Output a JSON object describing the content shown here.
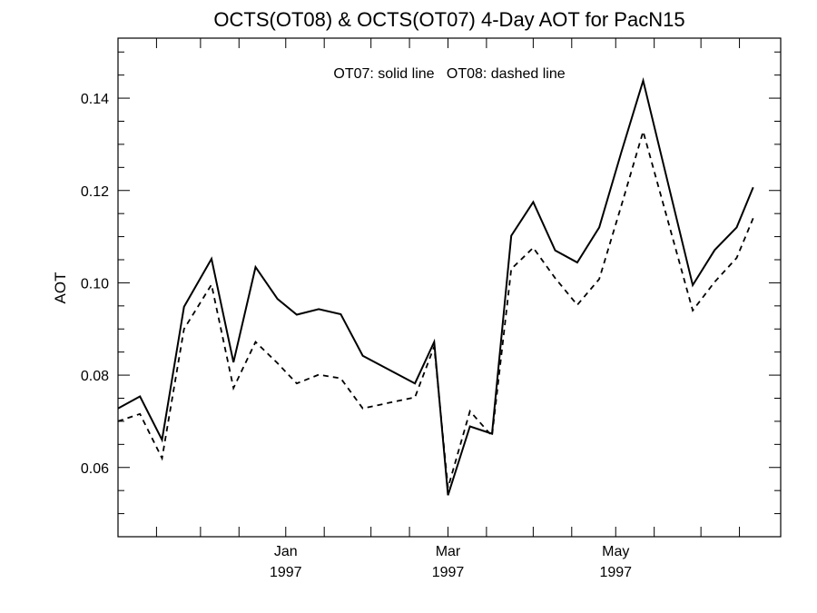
{
  "chart_data": {
    "type": "line",
    "title": "OCTS(OT08) & OCTS(OT07) 4-Day AOT for PacN15",
    "annotation": "OT07: solid line   OT08: dashed line",
    "xlabel": "",
    "ylabel": "AOT",
    "x_range": [
      "1996-11-01",
      "1997-06-30"
    ],
    "ylim": [
      0.045,
      0.153
    ],
    "grid": false,
    "y_ticks": [
      {
        "value": 0.06,
        "label": "0.06"
      },
      {
        "value": 0.08,
        "label": "0.08"
      },
      {
        "value": 0.1,
        "label": "0.10"
      },
      {
        "value": 0.12,
        "label": "0.12"
      },
      {
        "value": 0.14,
        "label": "0.14"
      }
    ],
    "x_ticks": [
      {
        "date": "1997-01-01",
        "label": "Jan",
        "year": "1997"
      },
      {
        "date": "1997-03-01",
        "label": "Mar",
        "year": "1997"
      },
      {
        "date": "1997-05-01",
        "label": "May",
        "year": "1997"
      }
    ],
    "series": [
      {
        "name": "OT07",
        "style": "solid",
        "color": "#000000",
        "points": [
          {
            "x": "1996-11-01",
            "y": 0.0728
          },
          {
            "x": "1996-11-09",
            "y": 0.0754
          },
          {
            "x": "1996-11-17",
            "y": 0.066
          },
          {
            "x": "1996-11-25",
            "y": 0.0948
          },
          {
            "x": "1996-12-05",
            "y": 0.1052
          },
          {
            "x": "1996-12-13",
            "y": 0.0828
          },
          {
            "x": "1996-12-21",
            "y": 0.1034
          },
          {
            "x": "1996-12-29",
            "y": 0.0965
          },
          {
            "x": "1997-01-05",
            "y": 0.0931
          },
          {
            "x": "1997-01-13",
            "y": 0.0943
          },
          {
            "x": "1997-01-21",
            "y": 0.0932
          },
          {
            "x": "1997-01-29",
            "y": 0.0842
          },
          {
            "x": "1997-02-17",
            "y": 0.0782
          },
          {
            "x": "1997-02-24",
            "y": 0.0872
          },
          {
            "x": "1997-03-01",
            "y": 0.054
          },
          {
            "x": "1997-03-09",
            "y": 0.0689
          },
          {
            "x": "1997-03-17",
            "y": 0.0673
          },
          {
            "x": "1997-03-24",
            "y": 0.1102
          },
          {
            "x": "1997-04-01",
            "y": 0.1175
          },
          {
            "x": "1997-04-09",
            "y": 0.107
          },
          {
            "x": "1997-04-17",
            "y": 0.1044
          },
          {
            "x": "1997-04-25",
            "y": 0.112
          },
          {
            "x": "1997-05-03",
            "y": 0.1282
          },
          {
            "x": "1997-05-11",
            "y": 0.1438
          },
          {
            "x": "1997-05-29",
            "y": 0.0995
          },
          {
            "x": "1997-06-06",
            "y": 0.1071
          },
          {
            "x": "1997-06-14",
            "y": 0.112
          },
          {
            "x": "1997-06-20",
            "y": 0.1207
          }
        ]
      },
      {
        "name": "OT08",
        "style": "dashed",
        "color": "#000000",
        "points": [
          {
            "x": "1996-11-01",
            "y": 0.07
          },
          {
            "x": "1996-11-09",
            "y": 0.0716
          },
          {
            "x": "1996-11-17",
            "y": 0.062
          },
          {
            "x": "1996-11-25",
            "y": 0.09
          },
          {
            "x": "1996-12-05",
            "y": 0.0996
          },
          {
            "x": "1996-12-13",
            "y": 0.0772
          },
          {
            "x": "1996-12-21",
            "y": 0.0872
          },
          {
            "x": "1996-12-29",
            "y": 0.0826
          },
          {
            "x": "1997-01-05",
            "y": 0.0782
          },
          {
            "x": "1997-01-13",
            "y": 0.0801
          },
          {
            "x": "1997-01-21",
            "y": 0.0793
          },
          {
            "x": "1997-01-29",
            "y": 0.0728
          },
          {
            "x": "1997-02-17",
            "y": 0.0752
          },
          {
            "x": "1997-02-24",
            "y": 0.0862
          },
          {
            "x": "1997-03-01",
            "y": 0.0556
          },
          {
            "x": "1997-03-09",
            "y": 0.0722
          },
          {
            "x": "1997-03-17",
            "y": 0.0668
          },
          {
            "x": "1997-03-24",
            "y": 0.103
          },
          {
            "x": "1997-04-01",
            "y": 0.1076
          },
          {
            "x": "1997-04-09",
            "y": 0.101
          },
          {
            "x": "1997-04-17",
            "y": 0.0952
          },
          {
            "x": "1997-04-25",
            "y": 0.1008
          },
          {
            "x": "1997-05-03",
            "y": 0.1166
          },
          {
            "x": "1997-05-11",
            "y": 0.1328
          },
          {
            "x": "1997-05-29",
            "y": 0.094
          },
          {
            "x": "1997-06-06",
            "y": 0.1002
          },
          {
            "x": "1997-06-14",
            "y": 0.1054
          },
          {
            "x": "1997-06-20",
            "y": 0.114
          }
        ]
      }
    ]
  }
}
